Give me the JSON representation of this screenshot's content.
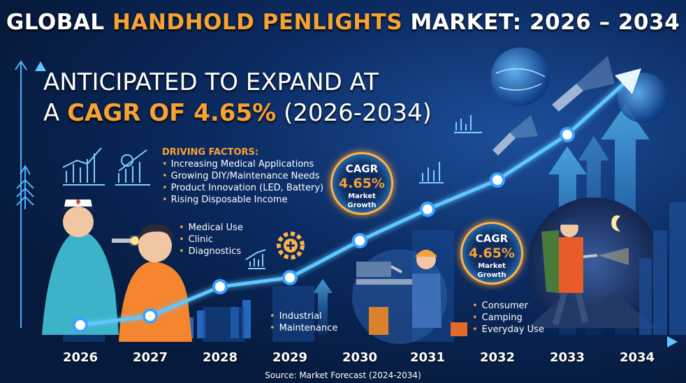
{
  "title": {
    "part1": "GLOBAL ",
    "highlight": "HANDHOLD PENLIGHTS",
    "part2": " MARKET: 2026 – 2034"
  },
  "headline": {
    "line1": "ANTICIPATED TO EXPAND AT",
    "line2_prefix": "A ",
    "line2_highlight": "CAGR OF 4.65%",
    "line2_suffix": " (2026-2034)"
  },
  "driving_factors": {
    "heading": "DRIVING FACTORS:",
    "items": [
      "Increasing Medical Applications",
      "Growing DIY/Maintenance Needs",
      "Product Innovation (LED, Battery)",
      "Rising Disposable Income"
    ]
  },
  "segments": {
    "medical": [
      "Medical Use",
      "Clinic",
      "Diagnostics"
    ],
    "industrial": [
      "Industrial",
      "Maintenance"
    ],
    "consumer": [
      "Consumer",
      "Camping",
      "Everyday Use"
    ]
  },
  "badges": [
    {
      "label": "CAGR",
      "value": "4.65%",
      "caption_line1": "Market",
      "caption_line2": "Growth"
    },
    {
      "label": "CAGR",
      "value": "4.65%",
      "caption_line1": "Market",
      "caption_line2": "Growth"
    }
  ],
  "timeline": {
    "years": [
      "2026",
      "2027",
      "2028",
      "2029",
      "2030",
      "2031",
      "2032",
      "2033",
      "2034"
    ]
  },
  "source": "Source: Market Forecast (2024-2034)",
  "colors": {
    "accent": "#f7a233",
    "background": "#061a3d",
    "line": "#5ec8ff"
  }
}
